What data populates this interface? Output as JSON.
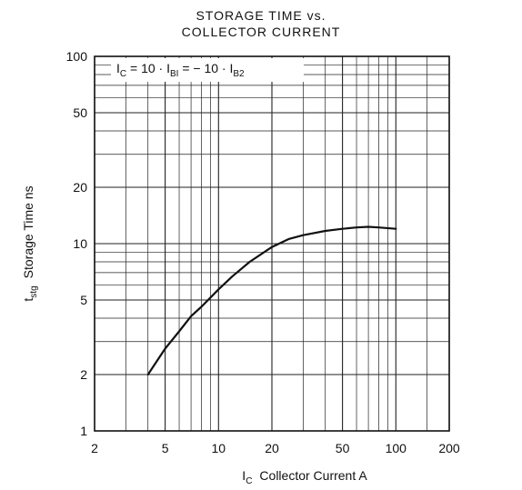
{
  "chart_data": {
    "type": "line",
    "title_line1": "STORAGE TIME vs.",
    "title_line2": "COLLECTOR CURRENT",
    "xlabel": {
      "sym": "I",
      "sub": "C",
      "text": "Collector Current   A"
    },
    "ylabel": {
      "sym": "t",
      "sub": "stg",
      "text": "Storage Time   ns"
    },
    "annotation": {
      "p1": "I",
      "s1": "C",
      "p2": " = 10 · I",
      "s2": "BI",
      "p3": " = − 10 · I",
      "s3": "B2"
    },
    "x_scale": "log",
    "y_scale": "log",
    "xlim": [
      2,
      200
    ],
    "ylim": [
      1,
      100
    ],
    "x_ticks": [
      2,
      5,
      10,
      20,
      50,
      100,
      200
    ],
    "x_tick_labels": [
      "2",
      "5",
      "10",
      "20",
      "50",
      "100",
      "200"
    ],
    "y_ticks": [
      1,
      2,
      5,
      10,
      20,
      50,
      100
    ],
    "y_tick_labels": [
      "1",
      "2",
      "5",
      "10",
      "20",
      "50",
      "100"
    ],
    "grid": true,
    "series": [
      {
        "x": [
          4,
          5,
          6,
          7,
          8,
          10,
          12,
          15,
          20,
          25,
          30,
          40,
          50,
          60,
          70,
          80,
          100
        ],
        "y": [
          2.0,
          2.75,
          3.4,
          4.1,
          4.6,
          5.7,
          6.7,
          8.0,
          9.6,
          10.6,
          11.1,
          11.7,
          12.0,
          12.2,
          12.3,
          12.2,
          12.0
        ]
      }
    ]
  }
}
